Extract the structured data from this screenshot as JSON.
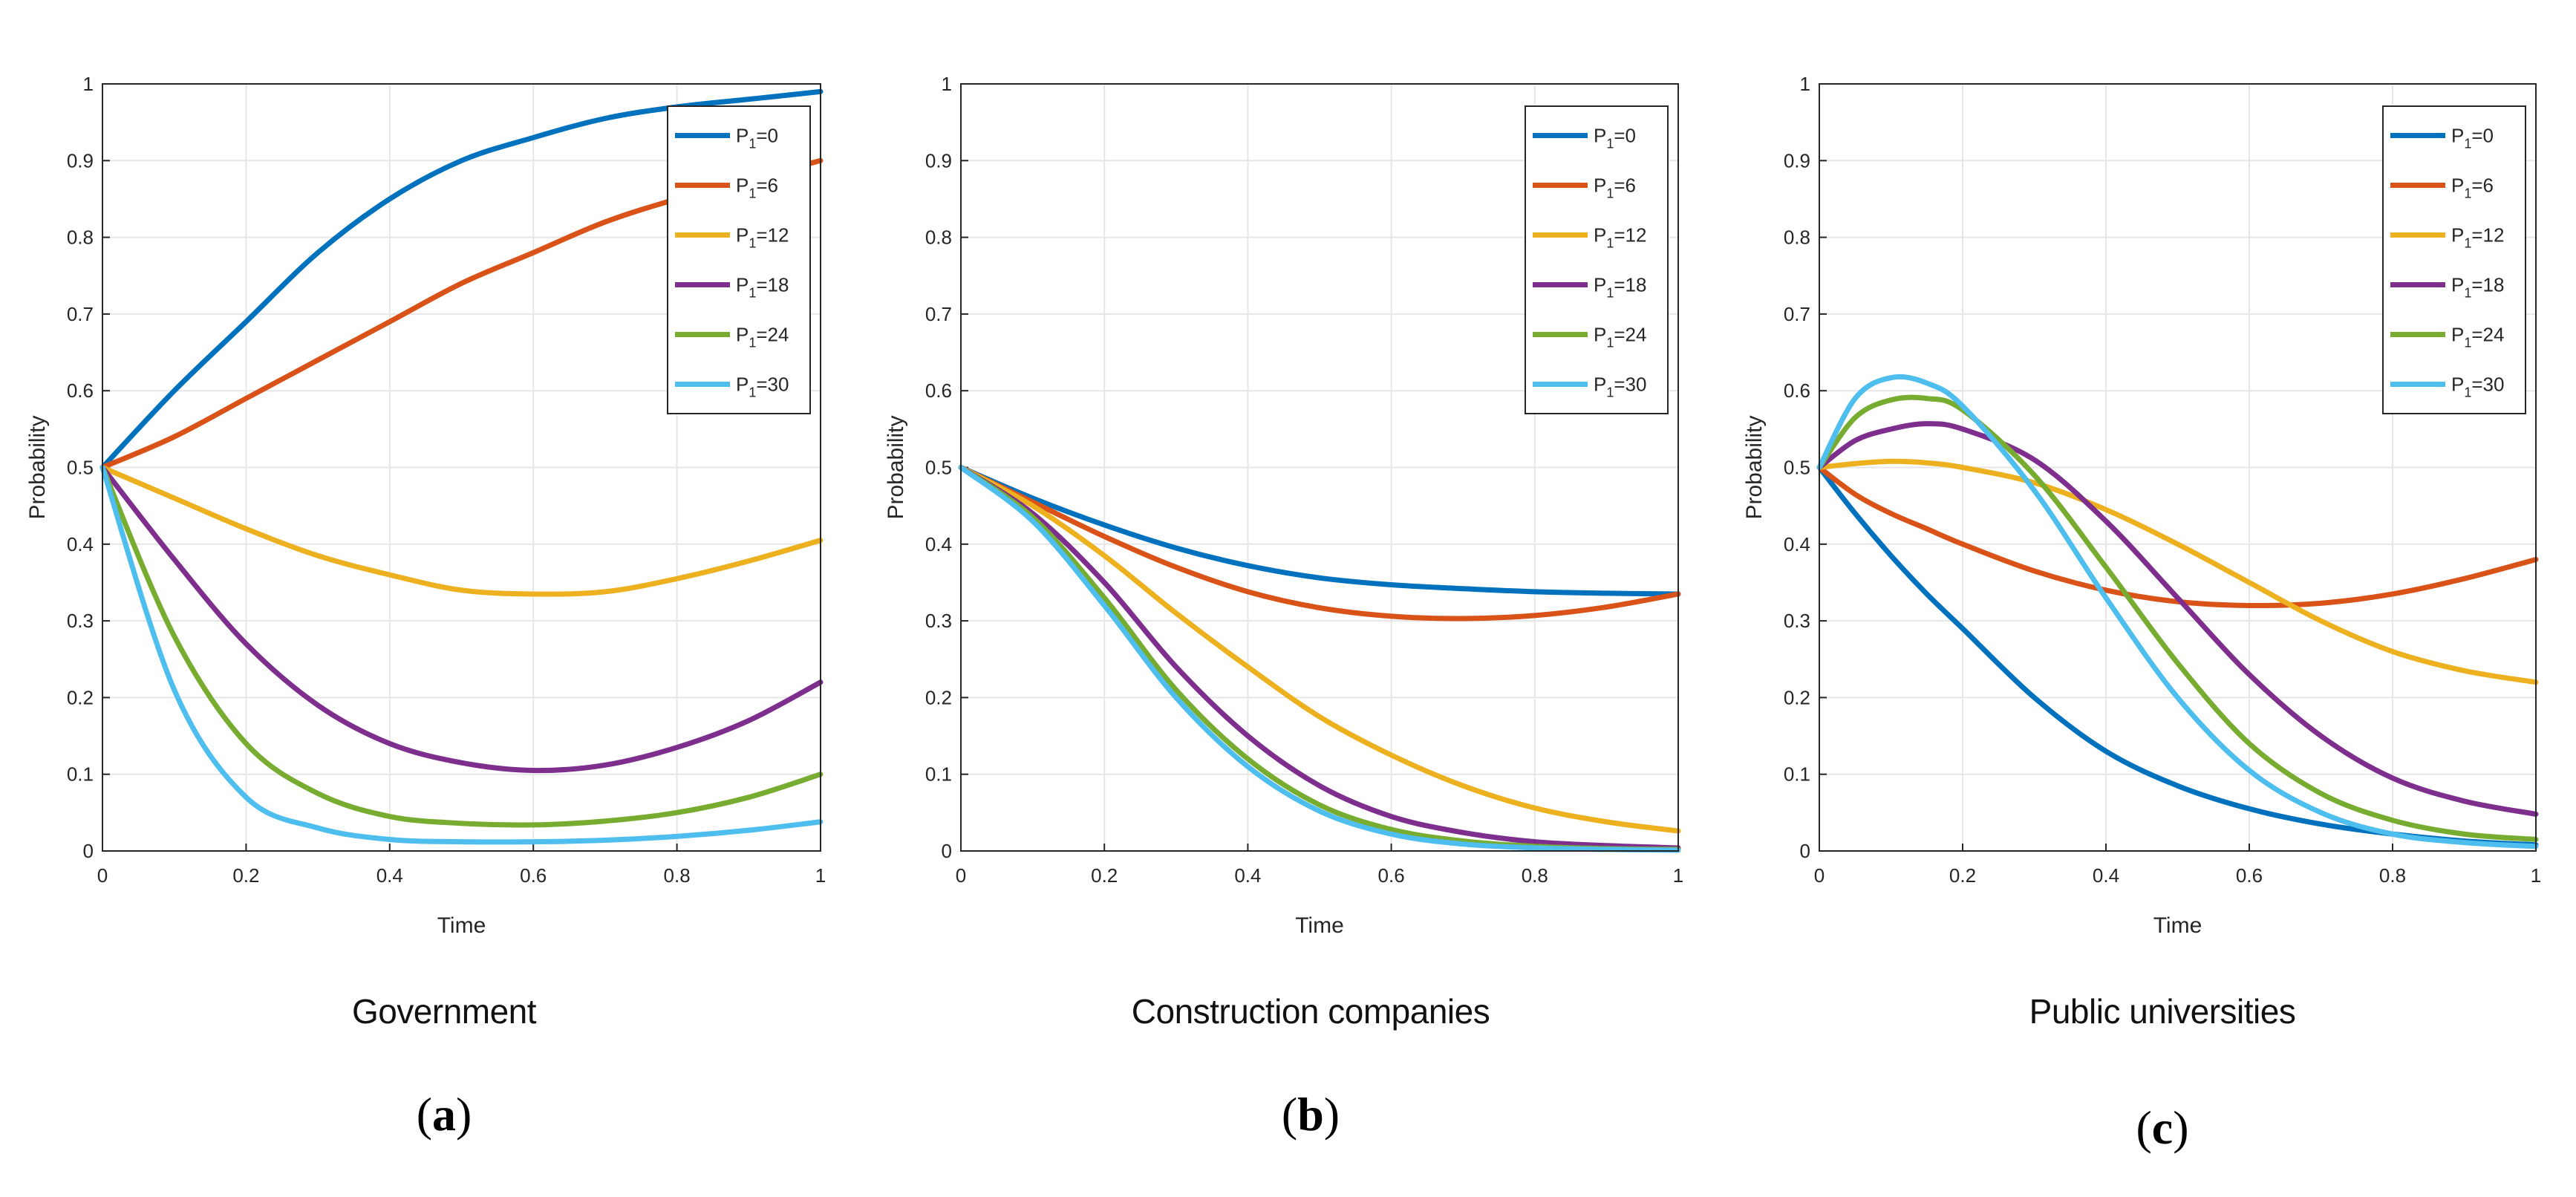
{
  "chart_data": [
    {
      "type": "line",
      "panel_label": "a",
      "caption": "Government",
      "xlabel": "Time",
      "ylabel": "Probability",
      "xlim": [
        0,
        1
      ],
      "ylim": [
        0,
        1
      ],
      "grid": true,
      "legend_position": "top-right",
      "x_ticks": [
        "0",
        "0.2",
        "0.4",
        "0.6",
        "0.8",
        "1"
      ],
      "y_ticks": [
        "0",
        "0.1",
        "0.2",
        "0.3",
        "0.4",
        "0.5",
        "0.6",
        "0.7",
        "0.8",
        "0.9",
        "1"
      ],
      "x": [
        0,
        0.1,
        0.2,
        0.3,
        0.4,
        0.5,
        0.6,
        0.7,
        0.8,
        0.9,
        1.0
      ],
      "series": [
        {
          "name": "P",
          "subscript": "1",
          "suffix": "=0",
          "color": "#0072BD",
          "values": [
            0.5,
            0.6,
            0.69,
            0.78,
            0.85,
            0.9,
            0.93,
            0.955,
            0.97,
            0.98,
            0.99
          ]
        },
        {
          "name": "P",
          "subscript": "1",
          "suffix": "=6",
          "color": "#D95319",
          "values": [
            0.5,
            0.54,
            0.59,
            0.64,
            0.69,
            0.74,
            0.78,
            0.82,
            0.85,
            0.875,
            0.9
          ]
        },
        {
          "name": "P",
          "subscript": "1",
          "suffix": "=12",
          "color": "#EDB120",
          "values": [
            0.5,
            0.46,
            0.42,
            0.385,
            0.36,
            0.34,
            0.335,
            0.338,
            0.355,
            0.378,
            0.405
          ]
        },
        {
          "name": "P",
          "subscript": "1",
          "suffix": "=18",
          "color": "#7E2F8E",
          "values": [
            0.5,
            0.38,
            0.27,
            0.19,
            0.14,
            0.115,
            0.105,
            0.112,
            0.135,
            0.17,
            0.22
          ]
        },
        {
          "name": "P",
          "subscript": "1",
          "suffix": "=24",
          "color": "#77AC30",
          "values": [
            0.5,
            0.28,
            0.14,
            0.075,
            0.045,
            0.036,
            0.034,
            0.039,
            0.05,
            0.07,
            0.1
          ]
        },
        {
          "name": "P",
          "subscript": "1",
          "suffix": "=30",
          "color": "#4DBEEE",
          "values": [
            0.5,
            0.21,
            0.07,
            0.03,
            0.015,
            0.012,
            0.012,
            0.014,
            0.019,
            0.027,
            0.038
          ]
        }
      ]
    },
    {
      "type": "line",
      "panel_label": "b",
      "caption": "Construction companies",
      "xlabel": "Time",
      "ylabel": "Probability",
      "xlim": [
        0,
        1
      ],
      "ylim": [
        0,
        1
      ],
      "grid": true,
      "legend_position": "top-right",
      "x_ticks": [
        "0",
        "0.2",
        "0.4",
        "0.6",
        "0.8",
        "1"
      ],
      "y_ticks": [
        "0",
        "0.1",
        "0.2",
        "0.3",
        "0.4",
        "0.5",
        "0.6",
        "0.7",
        "0.8",
        "0.9",
        "1"
      ],
      "x": [
        0,
        0.1,
        0.2,
        0.3,
        0.4,
        0.5,
        0.6,
        0.7,
        0.8,
        0.9,
        1.0
      ],
      "series": [
        {
          "name": "P",
          "subscript": "1",
          "suffix": "=0",
          "color": "#0072BD",
          "values": [
            0.5,
            0.46,
            0.425,
            0.395,
            0.372,
            0.356,
            0.347,
            0.342,
            0.338,
            0.336,
            0.335
          ]
        },
        {
          "name": "P",
          "subscript": "1",
          "suffix": "=6",
          "color": "#D95319",
          "values": [
            0.5,
            0.455,
            0.41,
            0.37,
            0.338,
            0.317,
            0.306,
            0.303,
            0.307,
            0.318,
            0.335
          ]
        },
        {
          "name": "P",
          "subscript": "1",
          "suffix": "=12",
          "color": "#EDB120",
          "values": [
            0.5,
            0.45,
            0.385,
            0.31,
            0.24,
            0.175,
            0.125,
            0.085,
            0.056,
            0.038,
            0.026
          ]
        },
        {
          "name": "P",
          "subscript": "1",
          "suffix": "=18",
          "color": "#7E2F8E",
          "values": [
            0.5,
            0.44,
            0.35,
            0.24,
            0.15,
            0.085,
            0.045,
            0.024,
            0.012,
            0.007,
            0.004
          ]
        },
        {
          "name": "P",
          "subscript": "1",
          "suffix": "=24",
          "color": "#77AC30",
          "values": [
            0.5,
            0.435,
            0.33,
            0.21,
            0.12,
            0.06,
            0.028,
            0.013,
            0.006,
            0.003,
            0.002
          ]
        },
        {
          "name": "P",
          "subscript": "1",
          "suffix": "=30",
          "color": "#4DBEEE",
          "values": [
            0.5,
            0.43,
            0.32,
            0.2,
            0.11,
            0.052,
            0.022,
            0.009,
            0.004,
            0.002,
            0.001
          ]
        }
      ]
    },
    {
      "type": "line",
      "panel_label": "c",
      "caption": "Public universities",
      "xlabel": "Time",
      "ylabel": "Probability",
      "xlim": [
        0,
        1
      ],
      "ylim": [
        0,
        1
      ],
      "grid": true,
      "legend_position": "top-right",
      "x_ticks": [
        "0",
        "0.2",
        "0.4",
        "0.6",
        "0.8",
        "1"
      ],
      "y_ticks": [
        "0",
        "0.1",
        "0.2",
        "0.3",
        "0.4",
        "0.5",
        "0.6",
        "0.7",
        "0.8",
        "0.9",
        "1"
      ],
      "x": [
        0,
        0.05,
        0.1,
        0.15,
        0.2,
        0.3,
        0.4,
        0.5,
        0.6,
        0.7,
        0.8,
        0.9,
        1.0
      ],
      "series": [
        {
          "name": "P",
          "subscript": "1",
          "suffix": "=0",
          "color": "#0072BD",
          "values": [
            0.5,
            0.44,
            0.385,
            0.335,
            0.29,
            0.2,
            0.13,
            0.085,
            0.055,
            0.035,
            0.022,
            0.013,
            0.008
          ]
        },
        {
          "name": "P",
          "subscript": "1",
          "suffix": "=6",
          "color": "#D95319",
          "values": [
            0.5,
            0.465,
            0.44,
            0.42,
            0.4,
            0.365,
            0.34,
            0.325,
            0.32,
            0.323,
            0.335,
            0.355,
            0.38
          ]
        },
        {
          "name": "P",
          "subscript": "1",
          "suffix": "=12",
          "color": "#EDB120",
          "values": [
            0.5,
            0.505,
            0.508,
            0.506,
            0.5,
            0.48,
            0.445,
            0.4,
            0.35,
            0.3,
            0.26,
            0.235,
            0.22
          ]
        },
        {
          "name": "P",
          "subscript": "1",
          "suffix": "=18",
          "color": "#7E2F8E",
          "values": [
            0.5,
            0.535,
            0.55,
            0.557,
            0.55,
            0.51,
            0.43,
            0.33,
            0.23,
            0.15,
            0.095,
            0.065,
            0.048
          ]
        },
        {
          "name": "P",
          "subscript": "1",
          "suffix": "=24",
          "color": "#77AC30",
          "values": [
            0.5,
            0.565,
            0.588,
            0.59,
            0.575,
            0.49,
            0.37,
            0.245,
            0.14,
            0.075,
            0.04,
            0.022,
            0.015
          ]
        },
        {
          "name": "P",
          "subscript": "1",
          "suffix": "=30",
          "color": "#4DBEEE",
          "values": [
            0.5,
            0.59,
            0.617,
            0.61,
            0.58,
            0.47,
            0.33,
            0.2,
            0.105,
            0.05,
            0.022,
            0.011,
            0.006
          ]
        }
      ]
    }
  ]
}
